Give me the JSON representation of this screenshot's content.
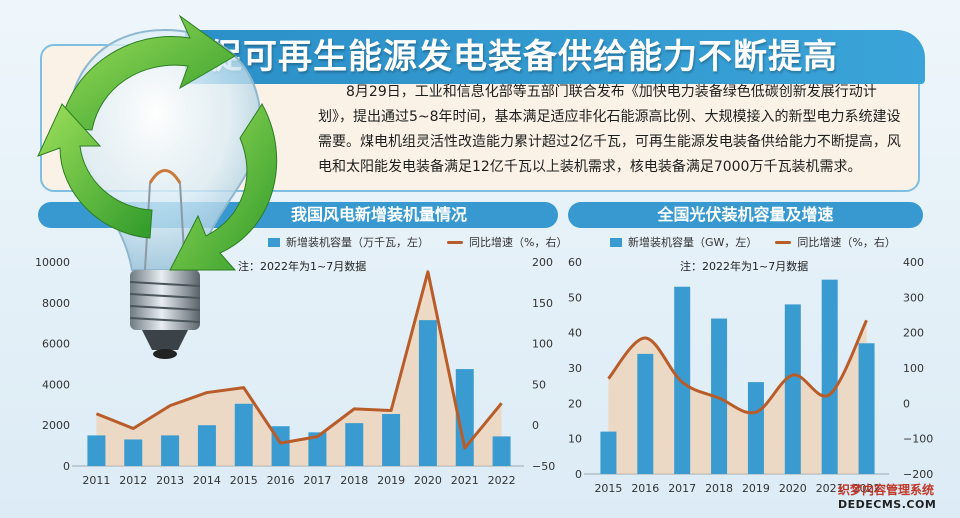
{
  "header": {
    "title": "促可再生能源发电装备供给能力不断提高",
    "intro": "8月29日，工业和信息化部等五部门联合发布《加快电力装备绿色低碳创新发展行动计划》，提出通过5~8年时间，基本满足适应非化石能源高比例、大规模接入的新型电力系统建设需要。煤电机组灵活性改造能力累计超过2亿千瓦，可再生能源发电装备供给能力不断提高，风电和太阳能发电装备满足12亿千瓦以上装机需求，核电装备满足7000万千瓦装机需求。"
  },
  "colors": {
    "bar": "#3a9bd0",
    "line": "#b85c2a",
    "area": "#f6c99c",
    "panel": "#3799cf"
  },
  "icons": [
    "lightbulb-icon",
    "recycle-arrows-icon"
  ],
  "watermark": {
    "line1": "织梦内容管理系统",
    "line2": "DEDECMS.COM"
  },
  "chart_data": [
    {
      "type": "bar",
      "title": "我国风电新增装机量情况",
      "note": "注：2022年为1~7月数据",
      "categories": [
        "2011",
        "2012",
        "2013",
        "2014",
        "2015",
        "2016",
        "2017",
        "2018",
        "2019",
        "2020",
        "2021",
        "2022"
      ],
      "series": [
        {
          "name": "新增装机容量（万千瓦，左）",
          "type": "bar",
          "axis": "left",
          "values": [
            1500,
            1300,
            1500,
            2000,
            3050,
            1950,
            1650,
            2100,
            2550,
            7150,
            4750,
            1450
          ]
        },
        {
          "name": "同比增速（%，右）",
          "type": "line",
          "axis": "right",
          "values": [
            14,
            -4,
            24,
            40,
            46,
            -22,
            -14,
            20,
            18,
            188,
            -28,
            27
          ]
        }
      ],
      "yleft": {
        "min": 0,
        "max": 10000,
        "ticks": [
          "0",
          "2000",
          "4000",
          "6000",
          "8000",
          "10000"
        ]
      },
      "yright": {
        "min": -50,
        "max": 200,
        "ticks": [
          "−50",
          "0",
          "50",
          "100",
          "150",
          "200"
        ]
      }
    },
    {
      "type": "bar",
      "title": "全国光伏装机容量及增速",
      "note": "注：2022年为1~7月数据",
      "categories": [
        "2015",
        "2016",
        "2017",
        "2018",
        "2019",
        "2020",
        "2021",
        "2022"
      ],
      "series": [
        {
          "name": "新增装机容量（GW，左）",
          "type": "bar",
          "axis": "left",
          "values": [
            12,
            34,
            53,
            44,
            26,
            48,
            55,
            37
          ]
        },
        {
          "name": "同比增速（%，右）",
          "type": "line",
          "axis": "right",
          "values": [
            70,
            185,
            60,
            15,
            -25,
            80,
            25,
            235
          ]
        }
      ],
      "yleft": {
        "min": 0,
        "max": 60,
        "ticks": [
          "0",
          "10",
          "20",
          "30",
          "40",
          "50",
          "60"
        ]
      },
      "yright": {
        "min": -200,
        "max": 400,
        "ticks": [
          "−200",
          "−100",
          "0",
          "100",
          "200",
          "300",
          "400"
        ]
      }
    }
  ]
}
